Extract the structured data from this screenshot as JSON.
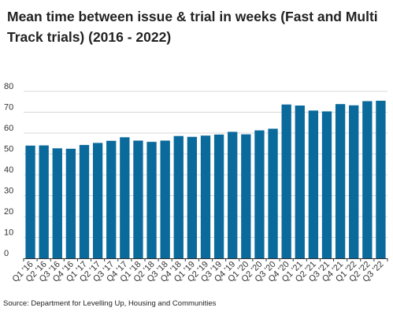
{
  "colors": {
    "bar": "#0a6a9c",
    "grid": "#d9d9d9",
    "axis": "#333333"
  },
  "chart_data": {
    "type": "bar",
    "title": "Mean time between issue & trial in weeks (Fast and Multi Track trials) (2016 - 2022)",
    "xlabel": "",
    "ylabel": "",
    "ylim": [
      0,
      80
    ],
    "yticks": [
      0,
      10,
      20,
      30,
      40,
      50,
      60,
      70,
      80
    ],
    "grid": true,
    "categories": [
      "Q1 '16",
      "Q2 '16",
      "Q3 '16",
      "Q4 '16",
      "Q1 '17",
      "Q2 '17",
      "Q3 '17",
      "Q4 '17",
      "Q1 '18",
      "Q2 '18",
      "Q3 '18",
      "Q4 '18",
      "Q1 '19",
      "Q2 '19",
      "Q3 '19",
      "Q4 '19",
      "Q1 '20",
      "Q2 '20",
      "Q3 '20",
      "Q4 '20",
      "Q1 '21",
      "Q2 '21",
      "Q3 '21",
      "Q4 '21",
      "Q1 '22",
      "Q2 '22",
      "Q3 '22"
    ],
    "values": [
      54,
      54.1,
      52.7,
      52.5,
      54.3,
      55.3,
      56.3,
      58,
      56.4,
      55.8,
      56.4,
      58.6,
      58.2,
      58.8,
      59.3,
      60.6,
      59.4,
      61.3,
      62.1,
      73.7,
      73.2,
      70.8,
      70.4,
      73.9,
      73.3,
      75.3,
      75.5
    ]
  },
  "source": "Source: Department for Levelling Up, Housing and Communities"
}
